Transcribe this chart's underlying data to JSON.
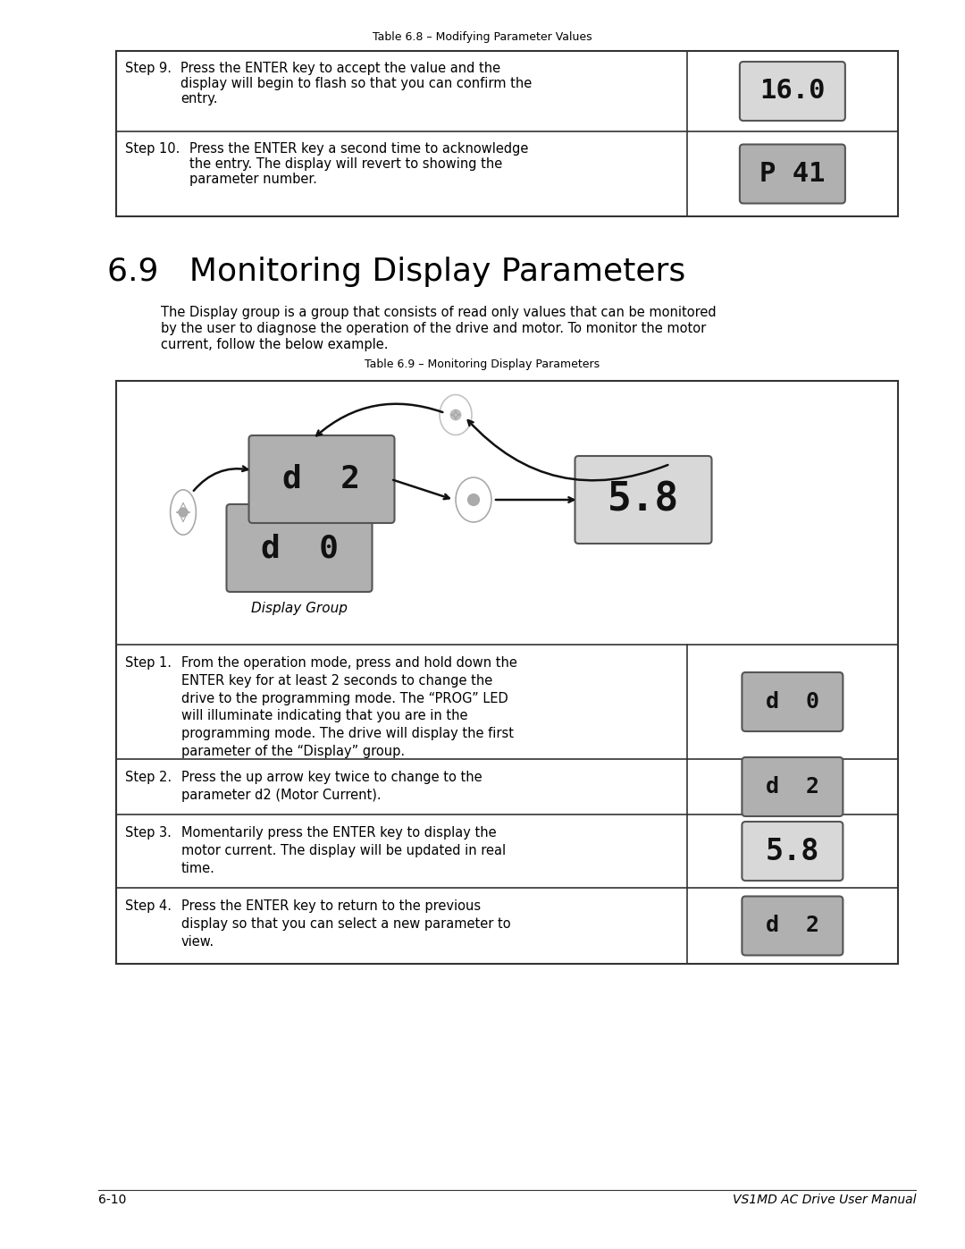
{
  "page_bg": "#ffffff",
  "table_title_1": "Table 6.8 – Modifying Parameter Values",
  "section_title": "6.9   Monitoring Display Parameters",
  "body_text_1": "The Display group is a group that consists of read only values that can be monitored",
  "body_text_2": "by the user to diagnose the operation of the drive and motor. To monitor the motor",
  "body_text_3": "current, follow the below example.",
  "table_title_2": "Table 6.9 – Monitoring Display Parameters",
  "step9_label": "Step 9.",
  "step9_text_1": "Press the ENTER key to accept the value and the",
  "step9_text_2": "display will begin to flash so that you can confirm the",
  "step9_text_3": "entry.",
  "step9_display": "16.0",
  "step10_label": "Step 10.",
  "step10_text_1": "Press the ENTER key a second time to acknowledge",
  "step10_text_2": "the entry. The display will revert to showing the",
  "step10_text_3": "parameter number.",
  "step10_display": "P 41",
  "display_group_label": "Display Group",
  "step1_label": "Step 1.",
  "step1_text": "From the operation mode, press and hold down the\nENTER key for at least 2 seconds to change the\ndrive to the programming mode. The “PROG” LED\nwill illuminate indicating that you are in the\nprogramming mode. The drive will display the first\nparameter of the “Display” group.",
  "step1_display": "d  0",
  "step2_label": "Step 2.",
  "step2_text": "Press the up arrow key twice to change to the\nparameter d2 (Motor Current).",
  "step2_display": "d  2",
  "step3_label": "Step 3.",
  "step3_text": "Momentarily press the ENTER key to display the\nmotor current. The display will be updated in real\ntime.",
  "step3_display": "5.8",
  "step4_label": "Step 4.",
  "step4_text": "Press the ENTER key to return to the previous\ndisplay so that you can select a new parameter to\nview.",
  "step4_display": "d  2",
  "display_bg_dark": "#b0b0b0",
  "display_bg_light": "#d8d8d8",
  "display_border": "#555555",
  "table_border": "#333333",
  "footer_left": "6-10",
  "footer_right": "VS1MD AC Drive User Manual",
  "nav_color": "#aaaaaa",
  "arrow_color": "#111111"
}
